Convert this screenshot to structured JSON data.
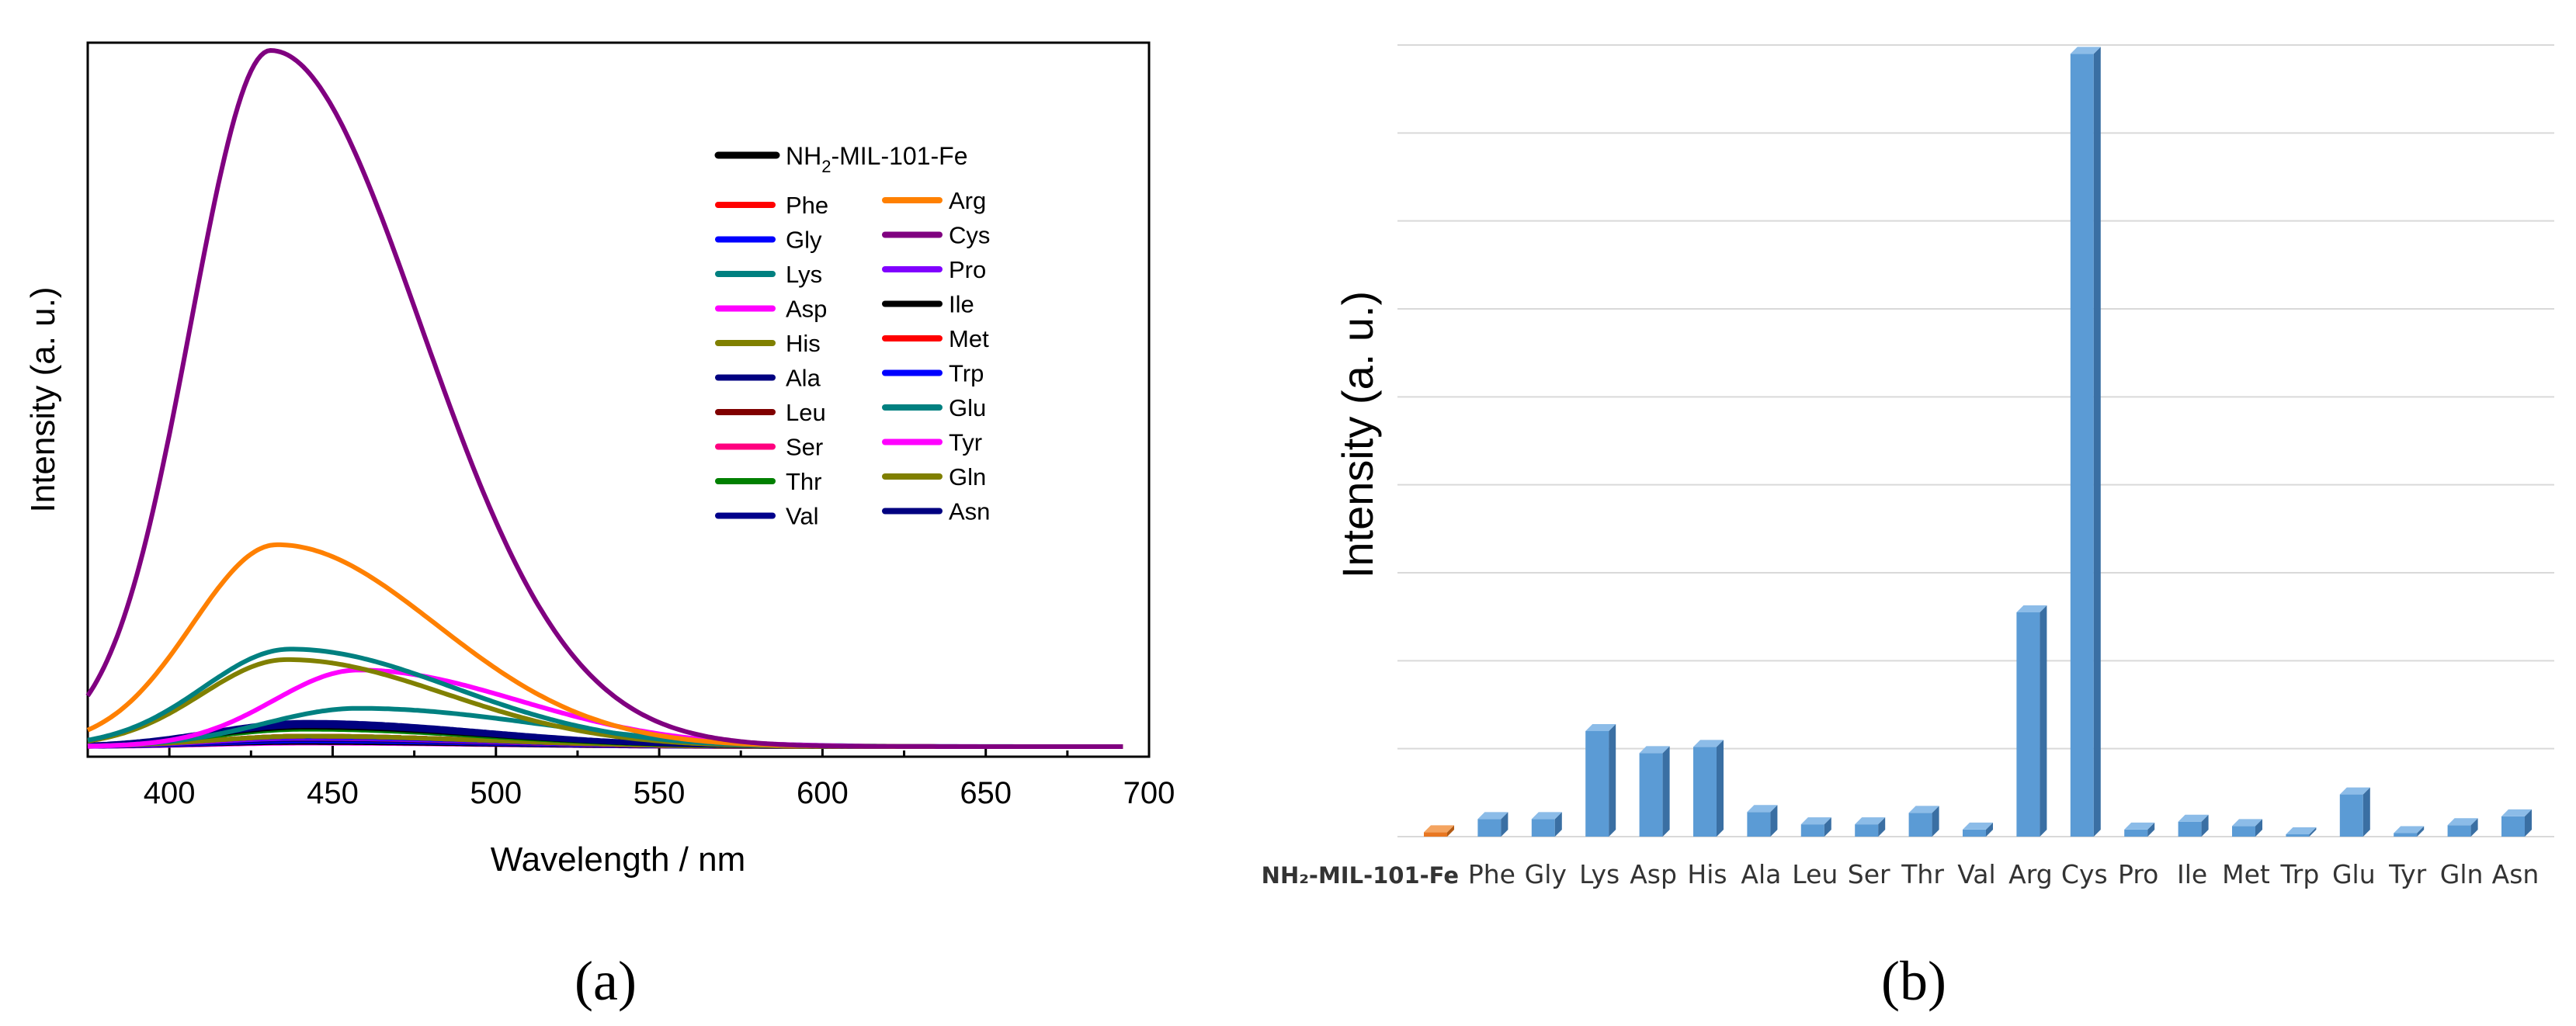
{
  "panels": {
    "a": {
      "label": "(a)"
    },
    "b": {
      "label": "(b)"
    }
  },
  "chart_data": [
    {
      "type": "line",
      "panel": "a",
      "xlabel": "Wavelength / nm",
      "ylabel": "Intensity (a. u.)",
      "xlim": [
        375,
        700
      ],
      "xticks": [
        400,
        450,
        500,
        550,
        600,
        650,
        700
      ],
      "ylim": [
        0,
        1.0
      ],
      "x_range": [
        375,
        692
      ],
      "legend_title": "NH2-MIL-101-Fe",
      "legend_position": "top-right",
      "legend_col1": [
        "Phe",
        "Gly",
        "Lys",
        "Asp",
        "His",
        "Ala",
        "Leu",
        "Ser",
        "Thr",
        "Val"
      ],
      "legend_col2": [
        "Arg",
        "Cys",
        "Pro",
        "Ile",
        "Met",
        "Trp",
        "Glu",
        "Tyr",
        "Gln",
        "Asn"
      ],
      "series": [
        {
          "name": "NH2-MIL-101-Fe",
          "color": "#000000",
          "peak": 0.006,
          "center": 440,
          "width": 40
        },
        {
          "name": "Phe",
          "color": "#ff0000",
          "peak": 0.012,
          "center": 440,
          "width": 40
        },
        {
          "name": "Gly",
          "color": "#0000ff",
          "peak": 0.014,
          "center": 440,
          "width": 40
        },
        {
          "name": "Lys",
          "color": "#008080",
          "peak": 0.14,
          "center": 437,
          "width": 37
        },
        {
          "name": "Asp",
          "color": "#ff00ff",
          "peak": 0.11,
          "center": 458,
          "width": 36
        },
        {
          "name": "His",
          "color": "#808000",
          "peak": 0.125,
          "center": 436,
          "width": 36
        },
        {
          "name": "Ala",
          "color": "#000080",
          "peak": 0.03,
          "center": 442,
          "width": 40
        },
        {
          "name": "Leu",
          "color": "#800000",
          "peak": 0.015,
          "center": 442,
          "width": 40
        },
        {
          "name": "Ser",
          "color": "#ff007f",
          "peak": 0.015,
          "center": 442,
          "width": 40
        },
        {
          "name": "Thr",
          "color": "#008000",
          "peak": 0.025,
          "center": 442,
          "width": 40
        },
        {
          "name": "Val",
          "color": "#00008b",
          "peak": 0.01,
          "center": 442,
          "width": 40
        },
        {
          "name": "Arg",
          "color": "#ff8000",
          "peak": 0.29,
          "center": 433,
          "width": 36
        },
        {
          "name": "Cys",
          "color": "#800080",
          "peak": 1.0,
          "center": 431,
          "width": 34
        },
        {
          "name": "Pro",
          "color": "#8000ff",
          "peak": 0.012,
          "center": 442,
          "width": 40
        },
        {
          "name": "Ile",
          "color": "#000000",
          "peak": 0.028,
          "center": 442,
          "width": 40
        },
        {
          "name": "Met",
          "color": "#ff0000",
          "peak": 0.015,
          "center": 442,
          "width": 40
        },
        {
          "name": "Trp",
          "color": "#0000ff",
          "peak": 0.008,
          "center": 442,
          "width": 40
        },
        {
          "name": "Glu",
          "color": "#008080",
          "peak": 0.055,
          "center": 458,
          "width": 40
        },
        {
          "name": "Tyr",
          "color": "#ff00ff",
          "peak": 0.005,
          "center": 442,
          "width": 40
        },
        {
          "name": "Gln",
          "color": "#808000",
          "peak": 0.015,
          "center": 442,
          "width": 40
        },
        {
          "name": "Asn",
          "color": "#000080",
          "peak": 0.035,
          "center": 442,
          "width": 40
        }
      ]
    },
    {
      "type": "bar",
      "panel": "b",
      "ylabel": "Intensity (a. u.)",
      "ylim": [
        0,
        9
      ],
      "grid": true,
      "categories": [
        "NH2-MIL-101-Fe",
        "Phe",
        "Gly",
        "Lys",
        "Asp",
        "His",
        "Ala",
        "Leu",
        "Ser",
        "Thr",
        "Val",
        "Arg",
        "Cys",
        "Pro",
        "Ile",
        "Met",
        "Trp",
        "Glu",
        "Tyr",
        "Gln",
        "Asn"
      ],
      "category_labels": [
        "NH₂-MIL-101-Fe",
        "Phe",
        "Gly",
        "Lys",
        "Asp",
        "His",
        "Ala",
        "Leu",
        "Ser",
        "Thr",
        "Val",
        "Arg",
        "Cys",
        "Pro",
        "Ile",
        "Met",
        "Trp",
        "Glu",
        "Tyr",
        "Gln",
        "Asn"
      ],
      "values": [
        0.05,
        0.2,
        0.2,
        1.2,
        0.95,
        1.02,
        0.28,
        0.14,
        0.14,
        0.27,
        0.08,
        2.55,
        8.9,
        0.08,
        0.17,
        0.12,
        0.02,
        0.48,
        0.04,
        0.13,
        0.23
      ],
      "colors": {
        "baseline": "#e87722",
        "bars": "#5b9bd5",
        "bar_side": "#3a6fa3",
        "bar_top": "#8cbce8",
        "grid": "#d9d9d9"
      }
    }
  ]
}
